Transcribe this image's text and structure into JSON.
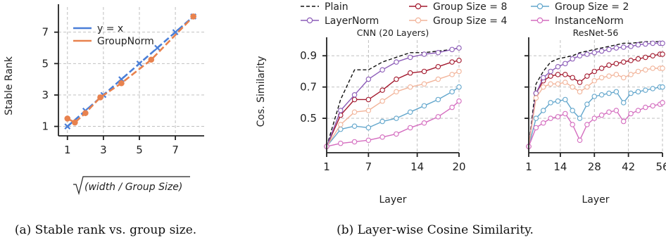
{
  "captions": {
    "a": "(a) Stable rank vs. group size.",
    "b": "(b) Layer-wise Cosine Similarity."
  },
  "chart_data": [
    {
      "type": "line",
      "title": "",
      "xlabel_parts": [
        "width",
        "Group Size"
      ],
      "ylabel": "Stable Rank",
      "xlim": [
        0.5,
        8.6
      ],
      "ylim": [
        0.4,
        8.6
      ],
      "xticks": [
        1,
        3,
        5,
        7
      ],
      "yticks": [
        1,
        3,
        5,
        7
      ],
      "grid": true,
      "legend": "upper-left",
      "series": [
        {
          "name": "y = x",
          "color": "#4a7fd8",
          "marker": "x",
          "x": [
            1,
            2,
            3,
            4,
            5,
            6,
            7,
            8
          ],
          "y": [
            1,
            2,
            3,
            4,
            5,
            6,
            7,
            8
          ]
        },
        {
          "name": "GroupNorm",
          "color": "#e8824e",
          "marker": "circle",
          "x": [
            1.0,
            1.414,
            2.0,
            2.828,
            4.0,
            5.657,
            8.0
          ],
          "y": [
            1.5,
            1.25,
            1.85,
            2.85,
            3.75,
            5.25,
            8.0
          ]
        }
      ]
    },
    {
      "type": "line",
      "title": "CNN (20 Layers)",
      "xlabel": "Layer",
      "ylabel": "Cos. Similarity",
      "xlim": [
        1,
        20
      ],
      "ylim": [
        0.28,
        1.0
      ],
      "xticks": [
        1,
        7,
        14,
        20
      ],
      "yticks": [
        0.5,
        0.7,
        0.9
      ],
      "grid": true,
      "series": [
        {
          "name": "Plain",
          "color": "#111111",
          "dash": true,
          "marker": "none",
          "x": [
            1,
            3,
            5,
            7,
            9,
            11,
            13,
            15,
            17,
            19,
            20
          ],
          "y": [
            0.32,
            0.62,
            0.81,
            0.81,
            0.86,
            0.89,
            0.92,
            0.92,
            0.93,
            0.94,
            0.95
          ]
        },
        {
          "name": "Group Size = 8",
          "color": "#a3192e",
          "marker": "ring",
          "x": [
            1,
            3,
            5,
            7,
            9,
            11,
            13,
            15,
            17,
            19,
            20
          ],
          "y": [
            0.32,
            0.52,
            0.62,
            0.62,
            0.68,
            0.75,
            0.79,
            0.8,
            0.83,
            0.86,
            0.87
          ]
        },
        {
          "name": "Group Size = 2",
          "color": "#62a6cc",
          "marker": "ring",
          "x": [
            1,
            3,
            5,
            7,
            9,
            11,
            13,
            15,
            17,
            19,
            20
          ],
          "y": [
            0.32,
            0.43,
            0.45,
            0.44,
            0.48,
            0.5,
            0.54,
            0.58,
            0.62,
            0.67,
            0.7
          ]
        },
        {
          "name": "LayerNorm",
          "color": "#8c5cb8",
          "marker": "ring",
          "x": [
            1,
            3,
            5,
            7,
            9,
            11,
            13,
            15,
            17,
            19,
            20
          ],
          "y": [
            0.32,
            0.55,
            0.65,
            0.75,
            0.81,
            0.86,
            0.89,
            0.91,
            0.92,
            0.94,
            0.95
          ]
        },
        {
          "name": "Group Size = 4",
          "color": "#f2b49a",
          "marker": "ring",
          "x": [
            1,
            3,
            5,
            7,
            9,
            11,
            13,
            15,
            17,
            19,
            20
          ],
          "y": [
            0.32,
            0.46,
            0.54,
            0.55,
            0.61,
            0.67,
            0.7,
            0.72,
            0.75,
            0.78,
            0.8
          ]
        },
        {
          "name": "InstanceNorm",
          "color": "#d46cbf",
          "marker": "ring",
          "x": [
            1,
            3,
            5,
            7,
            9,
            11,
            13,
            15,
            17,
            19,
            20
          ],
          "y": [
            0.32,
            0.34,
            0.35,
            0.36,
            0.38,
            0.4,
            0.44,
            0.47,
            0.51,
            0.57,
            0.61
          ]
        }
      ]
    },
    {
      "type": "line",
      "title": "ResNet-56",
      "xlabel": "Layer",
      "ylabel": "",
      "xlim": [
        1,
        56
      ],
      "ylim": [
        0.28,
        1.0
      ],
      "xticks": [
        1,
        14,
        28,
        42,
        56
      ],
      "yticks": [
        0.5,
        0.7,
        0.9
      ],
      "grid": true,
      "series": [
        {
          "name": "Plain",
          "color": "#111111",
          "dash": true,
          "marker": "none",
          "x": [
            1,
            4,
            7,
            10,
            13,
            16,
            19,
            22,
            25,
            28,
            31,
            34,
            37,
            40,
            43,
            46,
            49,
            52,
            55,
            56
          ],
          "y": [
            0.32,
            0.72,
            0.8,
            0.86,
            0.88,
            0.89,
            0.9,
            0.92,
            0.93,
            0.94,
            0.95,
            0.96,
            0.97,
            0.98,
            0.98,
            0.985,
            0.99,
            0.99,
            0.99,
            0.99
          ]
        },
        {
          "name": "Group Size = 8",
          "color": "#a3192e",
          "marker": "ring",
          "x": [
            1,
            4,
            7,
            10,
            13,
            16,
            19,
            22,
            25,
            28,
            31,
            34,
            37,
            40,
            43,
            46,
            49,
            52,
            55,
            56
          ],
          "y": [
            0.32,
            0.66,
            0.74,
            0.77,
            0.78,
            0.78,
            0.76,
            0.73,
            0.77,
            0.8,
            0.82,
            0.84,
            0.85,
            0.86,
            0.87,
            0.88,
            0.89,
            0.9,
            0.91,
            0.91
          ]
        },
        {
          "name": "Group Size = 2",
          "color": "#62a6cc",
          "marker": "ring",
          "x": [
            1,
            4,
            7,
            10,
            13,
            16,
            19,
            22,
            25,
            28,
            31,
            34,
            37,
            40,
            43,
            46,
            49,
            52,
            55,
            56
          ],
          "y": [
            0.32,
            0.5,
            0.55,
            0.6,
            0.61,
            0.62,
            0.55,
            0.5,
            0.59,
            0.64,
            0.65,
            0.66,
            0.67,
            0.6,
            0.66,
            0.67,
            0.68,
            0.69,
            0.7,
            0.7
          ]
        },
        {
          "name": "LayerNorm",
          "color": "#8c5cb8",
          "marker": "ring",
          "x": [
            1,
            4,
            7,
            10,
            13,
            16,
            19,
            22,
            25,
            28,
            31,
            34,
            37,
            40,
            43,
            46,
            49,
            52,
            55,
            56
          ],
          "y": [
            0.32,
            0.66,
            0.76,
            0.8,
            0.83,
            0.85,
            0.88,
            0.9,
            0.91,
            0.92,
            0.93,
            0.94,
            0.95,
            0.955,
            0.96,
            0.97,
            0.975,
            0.98,
            0.98,
            0.98
          ]
        },
        {
          "name": "Group Size = 4",
          "color": "#f2b49a",
          "marker": "ring",
          "x": [
            1,
            4,
            7,
            10,
            13,
            16,
            19,
            22,
            25,
            28,
            31,
            34,
            37,
            40,
            43,
            46,
            49,
            52,
            55,
            56
          ],
          "y": [
            0.32,
            0.63,
            0.7,
            0.72,
            0.72,
            0.73,
            0.7,
            0.67,
            0.7,
            0.74,
            0.76,
            0.77,
            0.78,
            0.76,
            0.78,
            0.8,
            0.81,
            0.82,
            0.82,
            0.82
          ]
        },
        {
          "name": "InstanceNorm",
          "color": "#d46cbf",
          "marker": "ring",
          "x": [
            1,
            4,
            7,
            10,
            13,
            16,
            19,
            22,
            25,
            28,
            31,
            34,
            37,
            40,
            43,
            46,
            49,
            52,
            55,
            56
          ],
          "y": [
            0.32,
            0.44,
            0.47,
            0.5,
            0.51,
            0.53,
            0.46,
            0.36,
            0.46,
            0.5,
            0.52,
            0.54,
            0.55,
            0.48,
            0.53,
            0.55,
            0.57,
            0.58,
            0.59,
            0.6
          ]
        }
      ]
    }
  ]
}
